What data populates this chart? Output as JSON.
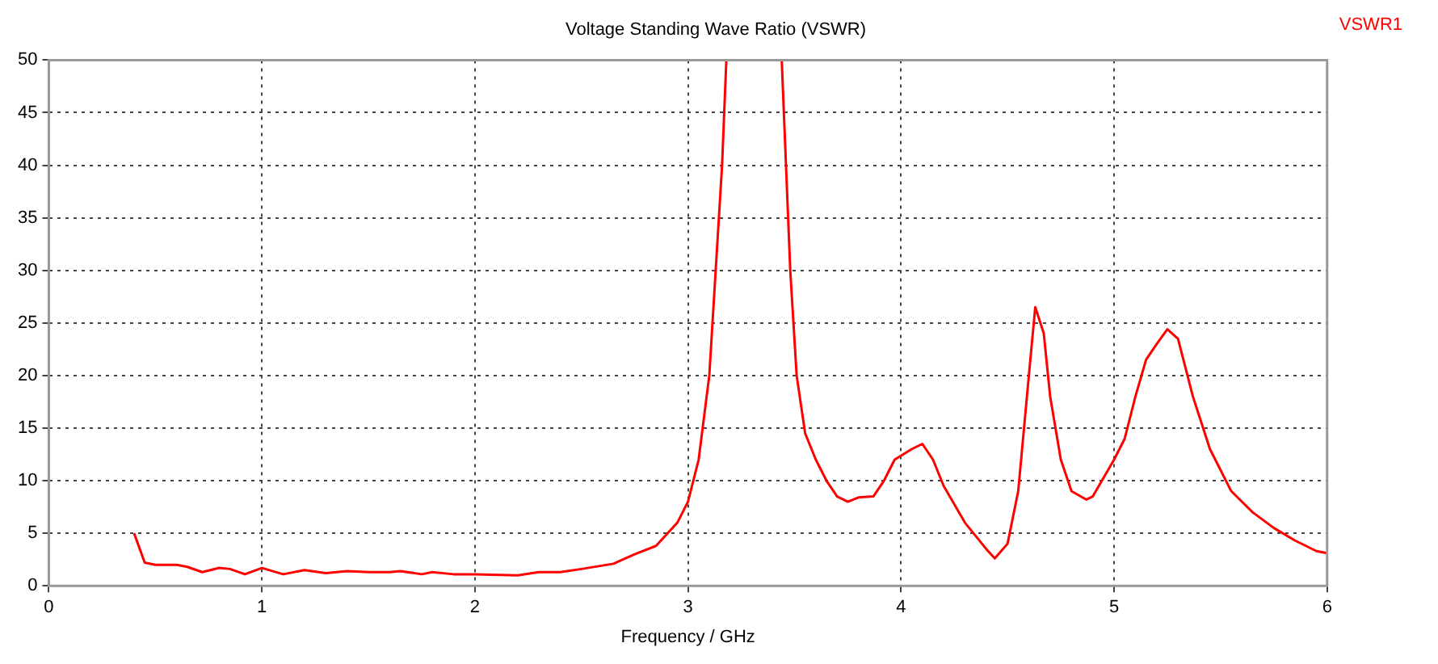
{
  "chart_data": {
    "type": "line",
    "title": "Voltage Standing Wave Ratio (VSWR)",
    "xlabel": "Frequency / GHz",
    "xlim": [
      0,
      6
    ],
    "xticks": [
      0,
      1,
      2,
      3,
      4,
      5,
      6
    ],
    "ylim": [
      0,
      50
    ],
    "yticks": [
      0,
      5,
      10,
      15,
      20,
      25,
      30,
      35,
      40,
      45,
      50
    ],
    "grid": true,
    "legend": "top right",
    "marker": "none",
    "line_style": "solid",
    "x": [
      0.4,
      0.45,
      0.5,
      0.6,
      0.65,
      0.72,
      0.8,
      0.85,
      0.92,
      1.0,
      1.1,
      1.2,
      1.3,
      1.4,
      1.5,
      1.6,
      1.65,
      1.75,
      1.8,
      1.9,
      2.0,
      2.2,
      2.3,
      2.4,
      2.5,
      2.65,
      2.75,
      2.85,
      2.95,
      3.0,
      3.05,
      3.1,
      3.13,
      3.16,
      3.18,
      3.3,
      3.44,
      3.46,
      3.48,
      3.51,
      3.55,
      3.6,
      3.65,
      3.7,
      3.75,
      3.8,
      3.87,
      3.92,
      3.97,
      4.05,
      4.1,
      4.15,
      4.2,
      4.3,
      4.4,
      4.44,
      4.5,
      4.55,
      4.6,
      4.63,
      4.67,
      4.7,
      4.75,
      4.8,
      4.87,
      4.9,
      5.0,
      5.05,
      5.1,
      5.15,
      5.2,
      5.25,
      5.3,
      5.37,
      5.45,
      5.55,
      5.65,
      5.75,
      5.85,
      5.95,
      6.0
    ],
    "series": [
      {
        "name": "VSWR1",
        "color": "#ff0000",
        "values": [
          5.0,
          2.2,
          2.0,
          2.0,
          1.8,
          1.3,
          1.7,
          1.6,
          1.1,
          1.7,
          1.1,
          1.5,
          1.2,
          1.4,
          1.3,
          1.3,
          1.4,
          1.1,
          1.3,
          1.1,
          1.1,
          1.0,
          1.3,
          1.3,
          1.6,
          2.1,
          3.0,
          3.8,
          6.0,
          8.0,
          12,
          20,
          30,
          40,
          50,
          null,
          50,
          40,
          30,
          20,
          14.5,
          12,
          10,
          8.5,
          8.0,
          8.4,
          8.5,
          10,
          12,
          13.0,
          13.5,
          12,
          9.5,
          6,
          3.5,
          2.6,
          4,
          9,
          20,
          26.5,
          24,
          18,
          12,
          9,
          8.2,
          8.5,
          12,
          14,
          18,
          21.5,
          23,
          24.4,
          23.5,
          18,
          13,
          9,
          7,
          5.5,
          4.3,
          3.3,
          3.1
        ]
      }
    ]
  }
}
